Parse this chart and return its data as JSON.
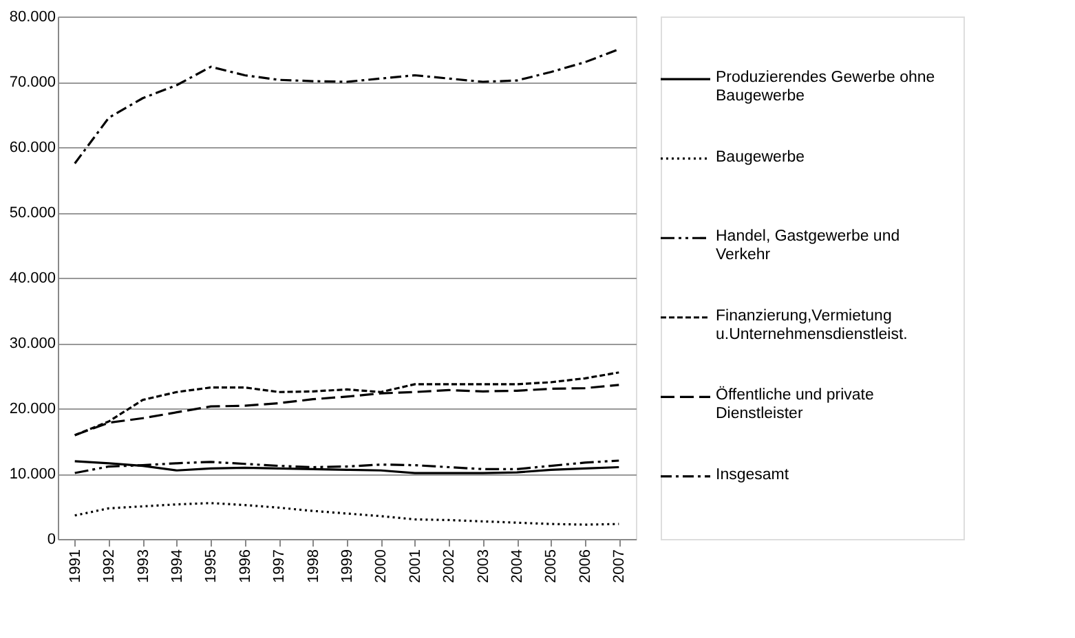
{
  "chart_data": {
    "type": "line",
    "categories": [
      "1991",
      "1992",
      "1993",
      "1994",
      "1995",
      "1996",
      "1997",
      "1998",
      "1999",
      "2000",
      "2001",
      "2002",
      "2003",
      "2004",
      "2005",
      "2006",
      "2007"
    ],
    "series": [
      {
        "name": "Produzierendes Gewerbe ohne Baugewerbe",
        "color": "#000000",
        "line_style": "solid",
        "values": [
          11900,
          11600,
          11200,
          10500,
          10800,
          10900,
          10800,
          10700,
          10600,
          10500,
          10100,
          10100,
          10100,
          10200,
          10600,
          10800,
          11000
        ]
      },
      {
        "name": "Baugewerbe",
        "color": "#000000",
        "line_style": "dotted",
        "values": [
          3600,
          4700,
          5000,
          5300,
          5500,
          5200,
          4800,
          4300,
          3900,
          3500,
          3000,
          2900,
          2700,
          2500,
          2300,
          2200,
          2300
        ]
      },
      {
        "name": "Handel, Gastgewerbe und Verkehr",
        "color": "#000000",
        "line_style": "longdashdotdot",
        "values": [
          10100,
          11100,
          11300,
          11600,
          11800,
          11500,
          11200,
          11000,
          11100,
          11400,
          11300,
          11000,
          10700,
          10700,
          11200,
          11700,
          12000
        ]
      },
      {
        "name": "Finanzierung,Vermietung u.Unternehmensdienstleist.",
        "color": "#000000",
        "line_style": "dashed",
        "values": [
          15900,
          18000,
          21300,
          22500,
          23200,
          23200,
          22500,
          22600,
          22900,
          22500,
          23700,
          23700,
          23700,
          23700,
          24000,
          24600,
          25500
        ]
      },
      {
        "name": "Öffentliche und private Dienstleister",
        "color": "#000000",
        "line_style": "longdash",
        "values": [
          15900,
          17800,
          18500,
          19400,
          20300,
          20400,
          20800,
          21400,
          21800,
          22300,
          22500,
          22800,
          22600,
          22700,
          23000,
          23100,
          23600
        ]
      },
      {
        "name": "Insgesamt",
        "color": "#000000",
        "line_style": "dashdot",
        "values": [
          57500,
          64500,
          67500,
          69500,
          72300,
          71000,
          70300,
          70100,
          70000,
          70500,
          71000,
          70500,
          70000,
          70200,
          71500,
          73000,
          75000
        ]
      }
    ],
    "ylim": [
      0,
      80000
    ],
    "yticks": [
      {
        "value": 0,
        "label": "0"
      },
      {
        "value": 10000,
        "label": "10.000"
      },
      {
        "value": 20000,
        "label": "20.000"
      },
      {
        "value": 30000,
        "label": "30.000"
      },
      {
        "value": 40000,
        "label": "40.000"
      },
      {
        "value": 50000,
        "label": "50.000"
      },
      {
        "value": 60000,
        "label": "60.000"
      },
      {
        "value": 70000,
        "label": "70.000"
      },
      {
        "value": 80000,
        "label": "80.000"
      }
    ],
    "grid": "y",
    "legend": "right"
  }
}
